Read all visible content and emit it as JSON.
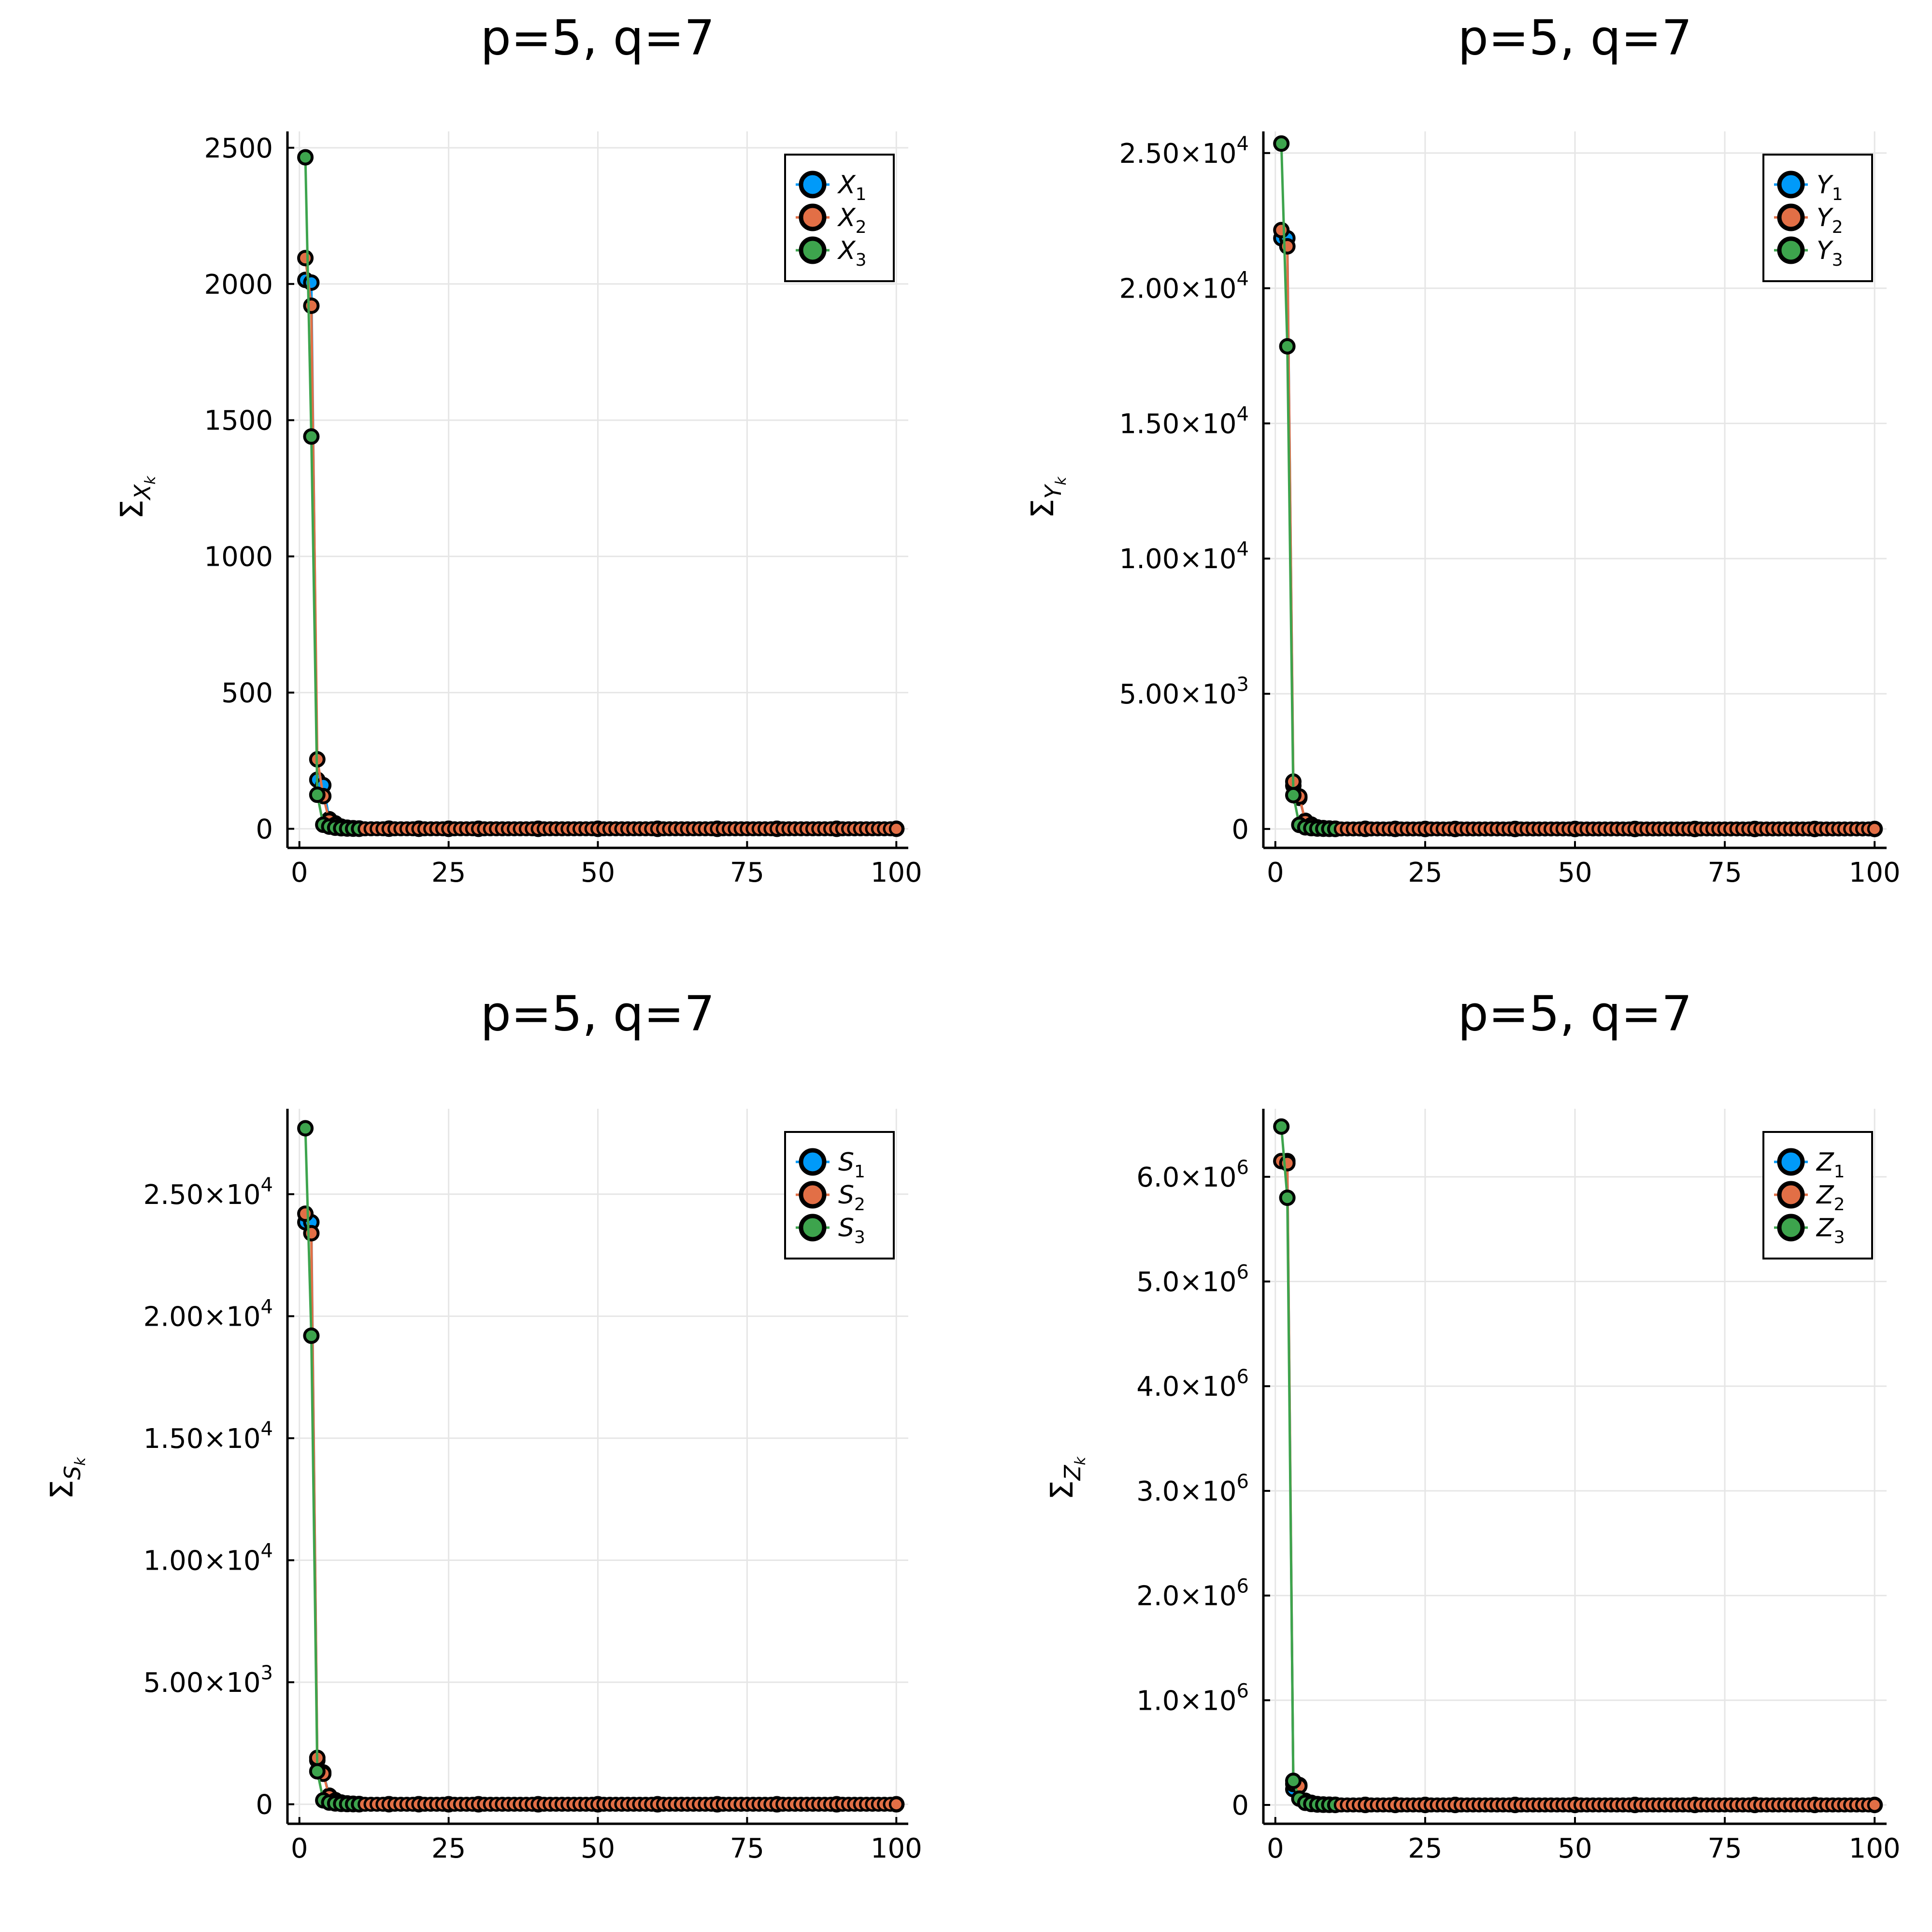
{
  "colors": {
    "s1": "#009af9",
    "s2": "#e26f46",
    "s3": "#3da44d",
    "grid": "#e6e6e6",
    "axis": "#000000",
    "marker_edge": "#000000"
  },
  "chart_data": [
    {
      "type": "scatter",
      "title": "p=5, q=7",
      "ylabel": {
        "base": "Σ",
        "sub": "X",
        "subsub": "k"
      },
      "xlim": [
        -2,
        102
      ],
      "ylim": [
        -70,
        2560
      ],
      "xticks": [
        0,
        25,
        50,
        75,
        100
      ],
      "xtick_labels": [
        "0",
        "25",
        "50",
        "75",
        "100"
      ],
      "yticks": [
        0,
        500,
        1000,
        1500,
        2000,
        2500
      ],
      "ytick_labels": [
        "0",
        "500",
        "1000",
        "1500",
        "2000",
        "2500"
      ],
      "legend_position": "top-right",
      "series": [
        {
          "name": "X",
          "sub": "1",
          "x": [
            1,
            2,
            3,
            4,
            5,
            6,
            7,
            8,
            9,
            10,
            15,
            20,
            25,
            30,
            40,
            50,
            60,
            70,
            80,
            90,
            100
          ],
          "y": [
            2015,
            2005,
            180,
            160,
            35,
            20,
            8,
            4,
            2,
            1,
            0.5,
            0.3,
            0,
            0,
            0,
            0,
            0,
            0,
            0,
            0,
            0
          ]
        },
        {
          "name": "X",
          "sub": "2",
          "x": [
            1,
            2,
            3,
            4,
            5,
            6,
            7,
            8,
            9,
            10,
            15,
            20,
            25,
            30,
            40,
            50,
            60,
            70,
            80,
            90,
            100
          ],
          "y": [
            2095,
            1920,
            255,
            120,
            30,
            15,
            6,
            3,
            2,
            1,
            0.5,
            0.3,
            0,
            0,
            0,
            0,
            0,
            0,
            0,
            0,
            0
          ]
        },
        {
          "name": "X",
          "sub": "3",
          "x": [
            1,
            2,
            3,
            4,
            5,
            6,
            7,
            8,
            9,
            10
          ],
          "y": [
            2465,
            1440,
            125,
            15,
            8,
            4,
            2,
            1,
            0.5,
            0
          ]
        }
      ]
    },
    {
      "type": "scatter",
      "title": "p=5, q=7",
      "ylabel": {
        "base": "Σ",
        "sub": "Y",
        "subsub": "k"
      },
      "xlim": [
        -2,
        102
      ],
      "ylim": [
        -700,
        25800
      ],
      "xticks": [
        0,
        25,
        50,
        75,
        100
      ],
      "xtick_labels": [
        "0",
        "25",
        "50",
        "75",
        "100"
      ],
      "yticks": [
        0,
        5000,
        10000,
        15000,
        20000,
        25000
      ],
      "ytick_labels": [
        {
          "mant": "0",
          "exp": ""
        },
        {
          "mant": "5.00×10",
          "exp": "3"
        },
        {
          "mant": "1.00×10",
          "exp": "4"
        },
        {
          "mant": "1.50×10",
          "exp": "4"
        },
        {
          "mant": "2.00×10",
          "exp": "4"
        },
        {
          "mant": "2.50×10",
          "exp": "4"
        }
      ],
      "legend_position": "top-right",
      "series": [
        {
          "name": "Y",
          "sub": "1",
          "x": [
            1,
            2,
            3,
            4,
            5,
            6,
            7,
            8,
            9,
            10,
            15,
            20,
            25,
            30,
            40,
            50,
            60,
            70,
            80,
            90,
            100
          ],
          "y": [
            21850,
            21850,
            1600,
            1150,
            300,
            160,
            60,
            30,
            15,
            8,
            3,
            1,
            0,
            0,
            0,
            0,
            0,
            0,
            0,
            0,
            0
          ]
        },
        {
          "name": "Y",
          "sub": "2",
          "x": [
            1,
            2,
            3,
            4,
            5,
            6,
            7,
            8,
            9,
            10,
            15,
            20,
            25,
            30,
            40,
            50,
            60,
            70,
            80,
            90,
            100
          ],
          "y": [
            22150,
            21550,
            1750,
            1200,
            280,
            140,
            50,
            25,
            12,
            6,
            3,
            1,
            0,
            0,
            0,
            0,
            0,
            0,
            0,
            0,
            0
          ]
        },
        {
          "name": "Y",
          "sub": "3",
          "x": [
            1,
            2,
            3,
            4,
            5,
            6,
            7,
            8,
            9,
            10
          ],
          "y": [
            25350,
            17850,
            1250,
            150,
            60,
            30,
            15,
            8,
            4,
            0
          ]
        }
      ]
    },
    {
      "type": "scatter",
      "title": "p=5, q=7",
      "ylabel": {
        "base": "Σ",
        "sub": "S",
        "subsub": "k"
      },
      "xlim": [
        -2,
        102
      ],
      "ylim": [
        -800,
        28500
      ],
      "xticks": [
        0,
        25,
        50,
        75,
        100
      ],
      "xtick_labels": [
        "0",
        "25",
        "50",
        "75",
        "100"
      ],
      "yticks": [
        0,
        5000,
        10000,
        15000,
        20000,
        25000
      ],
      "ytick_labels": [
        {
          "mant": "0",
          "exp": ""
        },
        {
          "mant": "5.00×10",
          "exp": "3"
        },
        {
          "mant": "1.00×10",
          "exp": "4"
        },
        {
          "mant": "1.50×10",
          "exp": "4"
        },
        {
          "mant": "2.00×10",
          "exp": "4"
        },
        {
          "mant": "2.50×10",
          "exp": "4"
        }
      ],
      "legend_position": "top-right",
      "series": [
        {
          "name": "S",
          "sub": "1",
          "x": [
            1,
            2,
            3,
            4,
            5,
            6,
            7,
            8,
            9,
            10,
            15,
            20,
            25,
            30,
            40,
            50,
            60,
            70,
            80,
            90,
            100
          ],
          "y": [
            23850,
            23850,
            1800,
            1300,
            350,
            170,
            70,
            35,
            18,
            9,
            3,
            1,
            0,
            0,
            0,
            0,
            0,
            0,
            0,
            0,
            0
          ]
        },
        {
          "name": "S",
          "sub": "2",
          "x": [
            1,
            2,
            3,
            4,
            5,
            6,
            7,
            8,
            9,
            10,
            15,
            20,
            25,
            30,
            40,
            50,
            60,
            70,
            80,
            90,
            100
          ],
          "y": [
            24200,
            23400,
            1900,
            1250,
            320,
            150,
            60,
            30,
            15,
            7,
            3,
            1,
            0,
            0,
            0,
            0,
            0,
            0,
            0,
            0,
            0
          ]
        },
        {
          "name": "S",
          "sub": "3",
          "x": [
            1,
            2,
            3,
            4,
            5,
            6,
            7,
            8,
            9,
            10
          ],
          "y": [
            27700,
            19200,
            1350,
            160,
            70,
            35,
            17,
            8,
            4,
            0
          ]
        }
      ]
    },
    {
      "type": "scatter",
      "title": "p=5, q=7",
      "ylabel": {
        "base": "Σ",
        "sub": "Z",
        "subsub": "k"
      },
      "xlim": [
        -2,
        102
      ],
      "ylim": [
        -180000,
        6650000
      ],
      "xticks": [
        0,
        25,
        50,
        75,
        100
      ],
      "xtick_labels": [
        "0",
        "25",
        "50",
        "75",
        "100"
      ],
      "yticks": [
        0,
        1000000,
        2000000,
        3000000,
        4000000,
        5000000,
        6000000
      ],
      "ytick_labels": [
        {
          "mant": "0",
          "exp": ""
        },
        {
          "mant": "1.0×10",
          "exp": "6"
        },
        {
          "mant": "2.0×10",
          "exp": "6"
        },
        {
          "mant": "3.0×10",
          "exp": "6"
        },
        {
          "mant": "4.0×10",
          "exp": "6"
        },
        {
          "mant": "5.0×10",
          "exp": "6"
        },
        {
          "mant": "6.0×10",
          "exp": "6"
        }
      ],
      "legend_position": "top-right",
      "series": [
        {
          "name": "Z",
          "sub": "1",
          "x": [
            1,
            2,
            3,
            4,
            5,
            6,
            7,
            8,
            9,
            10,
            15,
            20,
            25,
            30,
            40,
            50,
            60,
            70,
            80,
            90,
            100
          ],
          "y": [
            6150000,
            6150000,
            150000,
            190000,
            40000,
            20000,
            8000,
            4000,
            2000,
            1000,
            300,
            100,
            0,
            0,
            0,
            0,
            0,
            0,
            0,
            0,
            0
          ]
        },
        {
          "name": "Z",
          "sub": "2",
          "x": [
            1,
            2,
            3,
            4,
            5,
            6,
            7,
            8,
            9,
            10,
            15,
            20,
            25,
            30,
            40,
            50,
            60,
            70,
            80,
            90,
            100
          ],
          "y": [
            6150000,
            6130000,
            200000,
            180000,
            35000,
            18000,
            7000,
            3500,
            1800,
            900,
            300,
            100,
            0,
            0,
            0,
            0,
            0,
            0,
            0,
            0,
            0
          ]
        },
        {
          "name": "Z",
          "sub": "3",
          "x": [
            1,
            2,
            3,
            4,
            5,
            6,
            7,
            8,
            9,
            10
          ],
          "y": [
            6480000,
            5800000,
            230000,
            60000,
            20000,
            9000,
            4000,
            2000,
            1000,
            0
          ]
        }
      ]
    }
  ]
}
